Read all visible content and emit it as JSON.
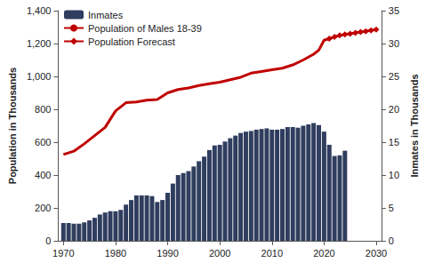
{
  "chart_data": {
    "type": "bar",
    "legend": "upper left",
    "grid": false,
    "xlim": [
      1969,
      2031
    ],
    "xticks": [
      1970,
      1980,
      1990,
      2000,
      2010,
      2020,
      2030
    ],
    "ylabel": "Population in Thousands",
    "ylim": [
      0,
      1400
    ],
    "yticks": [
      0,
      200,
      400,
      600,
      800,
      {
        "value": 1000,
        "label": "1,000"
      },
      {
        "value": 1200,
        "label": "1,200"
      },
      {
        "value": 1400,
        "label": "1,400"
      }
    ],
    "y2label": "Inmates in Thousands",
    "y2lim": [
      0,
      35
    ],
    "y2ticks": [
      0,
      5,
      10,
      15,
      20,
      25,
      30,
      35
    ],
    "series": [
      {
        "name": "Inmates",
        "type": "bar",
        "axis": "y2",
        "color": "#2f3d5e",
        "x": [
          1970,
          1971,
          1972,
          1973,
          1974,
          1975,
          1976,
          1977,
          1978,
          1979,
          1980,
          1981,
          1982,
          1983,
          1984,
          1985,
          1986,
          1987,
          1988,
          1989,
          1990,
          1991,
          1992,
          1993,
          1994,
          1995,
          1996,
          1997,
          1998,
          1999,
          2000,
          2001,
          2002,
          2003,
          2004,
          2005,
          2006,
          2007,
          2008,
          2009,
          2010,
          2011,
          2012,
          2013,
          2014,
          2015,
          2016,
          2017,
          2018,
          2019,
          2020,
          2021,
          2022,
          2023,
          2024
        ],
        "values": [
          2.7,
          2.7,
          2.6,
          2.6,
          2.8,
          3.1,
          3.5,
          4.0,
          4.3,
          4.5,
          4.5,
          4.7,
          5.5,
          6.2,
          6.9,
          6.9,
          6.9,
          6.8,
          5.9,
          6.2,
          7.3,
          8.7,
          10.0,
          10.3,
          10.6,
          11.3,
          12.1,
          12.8,
          13.8,
          14.5,
          14.6,
          15.1,
          15.6,
          16.0,
          16.4,
          16.6,
          16.7,
          16.9,
          17.0,
          17.1,
          16.9,
          16.9,
          17.0,
          17.3,
          17.3,
          17.2,
          17.5,
          17.7,
          17.9,
          17.6,
          16.6,
          14.6,
          12.9,
          13.0,
          13.7
        ]
      },
      {
        "name": "Population of Males 18-39",
        "type": "line",
        "marker": "none",
        "color": "#c00000",
        "x": [
          1970,
          1972,
          1974,
          1976,
          1978,
          1980,
          1982,
          1984,
          1986,
          1988,
          1990,
          1992,
          1994,
          1996,
          1998,
          2000,
          2002,
          2004,
          2006,
          2008,
          2010,
          2012,
          2014,
          2016,
          2018,
          2019,
          2020,
          2021
        ],
        "values": [
          525,
          545,
          590,
          640,
          690,
          790,
          840,
          845,
          855,
          860,
          900,
          920,
          930,
          945,
          955,
          965,
          980,
          995,
          1020,
          1030,
          1040,
          1050,
          1070,
          1100,
          1135,
          1160,
          1220,
          1230
        ]
      },
      {
        "name": "Population Forecast",
        "type": "line",
        "marker": "diamond",
        "color": "#c00000",
        "x": [
          2021,
          2022,
          2023,
          2024,
          2025,
          2026,
          2027,
          2028,
          2029,
          2030
        ],
        "values": [
          1230,
          1240,
          1250,
          1255,
          1260,
          1265,
          1270,
          1275,
          1280,
          1285
        ]
      }
    ]
  }
}
